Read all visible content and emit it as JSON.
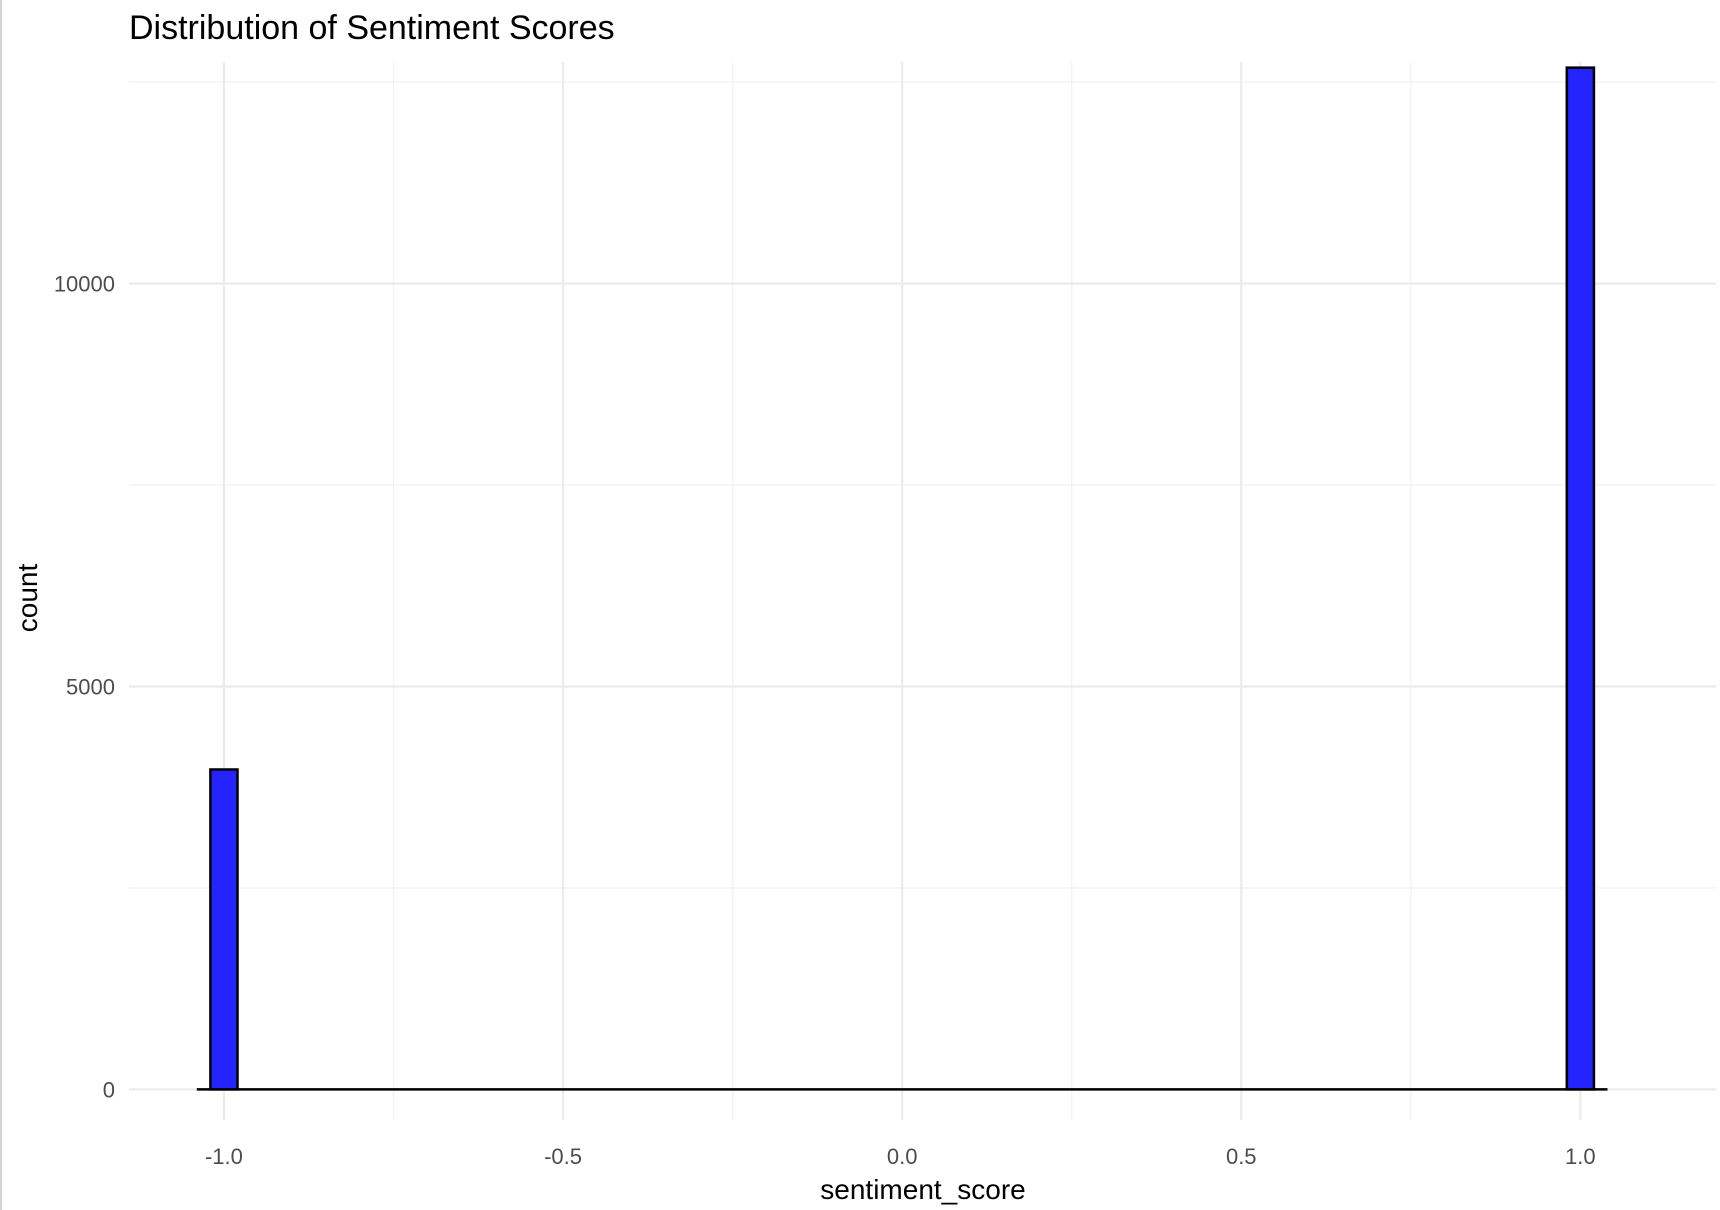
{
  "chart_data": {
    "type": "bar",
    "title": "Distribution of Sentiment Scores",
    "xlabel": "sentiment_score",
    "ylabel": "count",
    "xlim": [
      -1.14,
      1.2
    ],
    "ylim": [
      -380,
      12750
    ],
    "x_ticks_major": [
      -1.0,
      -0.5,
      0.0,
      0.5,
      1.0
    ],
    "x_tick_labels": [
      "-1.0",
      "-0.5",
      "0.0",
      "0.5",
      "1.0"
    ],
    "x_ticks_minor": [
      -0.75,
      -0.25,
      0.25,
      0.75
    ],
    "y_ticks_major": [
      0,
      5000,
      10000
    ],
    "y_tick_labels": [
      "0",
      "5000",
      "10000"
    ],
    "y_ticks_minor": [
      2500,
      7500,
      12500
    ],
    "bin_width": 0.04,
    "bins": [
      {
        "x": -1.0,
        "count": 3970
      },
      {
        "x": 1.0,
        "count": 12680
      }
    ],
    "baseline_range": [
      -1.04,
      1.04
    ],
    "grid": true,
    "legend": "none",
    "colors": {
      "bar_fill": "#2424ff",
      "bar_stroke": "#000000",
      "grid_major": "#ebebeb",
      "grid_minor": "#f2f2f2",
      "text": "#000000",
      "tick_text": "#4d4d4d"
    }
  }
}
